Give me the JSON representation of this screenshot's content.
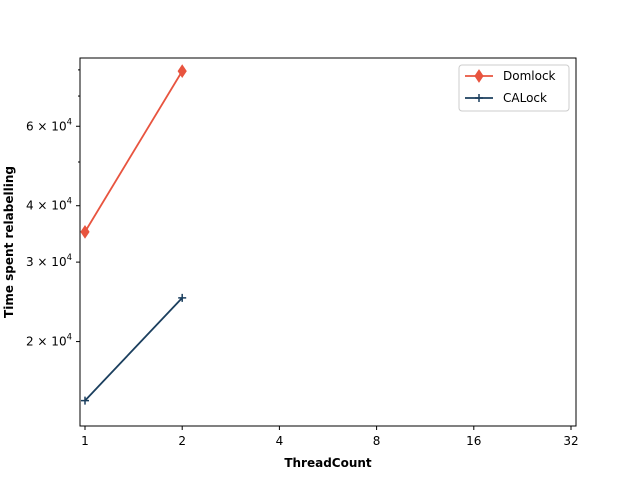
{
  "chart_data": {
    "type": "line",
    "title": "",
    "xlabel": "ThreadCount",
    "ylabel": "Time spent relabelling",
    "xscale": "log2",
    "yscale": "log",
    "xlim": [
      1,
      32
    ],
    "ylim": [
      13000,
      85000
    ],
    "xticks": [
      {
        "value": 1,
        "label": "1"
      },
      {
        "value": 2,
        "label": "2"
      },
      {
        "value": 4,
        "label": "4"
      },
      {
        "value": 8,
        "label": "8"
      },
      {
        "value": 16,
        "label": "16"
      },
      {
        "value": 32,
        "label": "32"
      }
    ],
    "yticks": [
      {
        "value": 20000,
        "mantissa": "2",
        "base": "10",
        "exp": "4"
      },
      {
        "value": 30000,
        "mantissa": "3",
        "base": "10",
        "exp": "4"
      },
      {
        "value": 40000,
        "mantissa": "4",
        "base": "10",
        "exp": "4"
      },
      {
        "value": 60000,
        "mantissa": "6",
        "base": "10",
        "exp": "4"
      }
    ],
    "grid": false,
    "legend_position": "top-right",
    "series": [
      {
        "name": "Domlock",
        "color": "#e8543f",
        "marker": "diamond",
        "x": [
          1,
          2
        ],
        "y": [
          35000,
          79500
        ]
      },
      {
        "name": "CALock",
        "color": "#1b3f5e",
        "marker": "plus",
        "x": [
          1,
          2
        ],
        "y": [
          14800,
          25000
        ]
      }
    ]
  }
}
